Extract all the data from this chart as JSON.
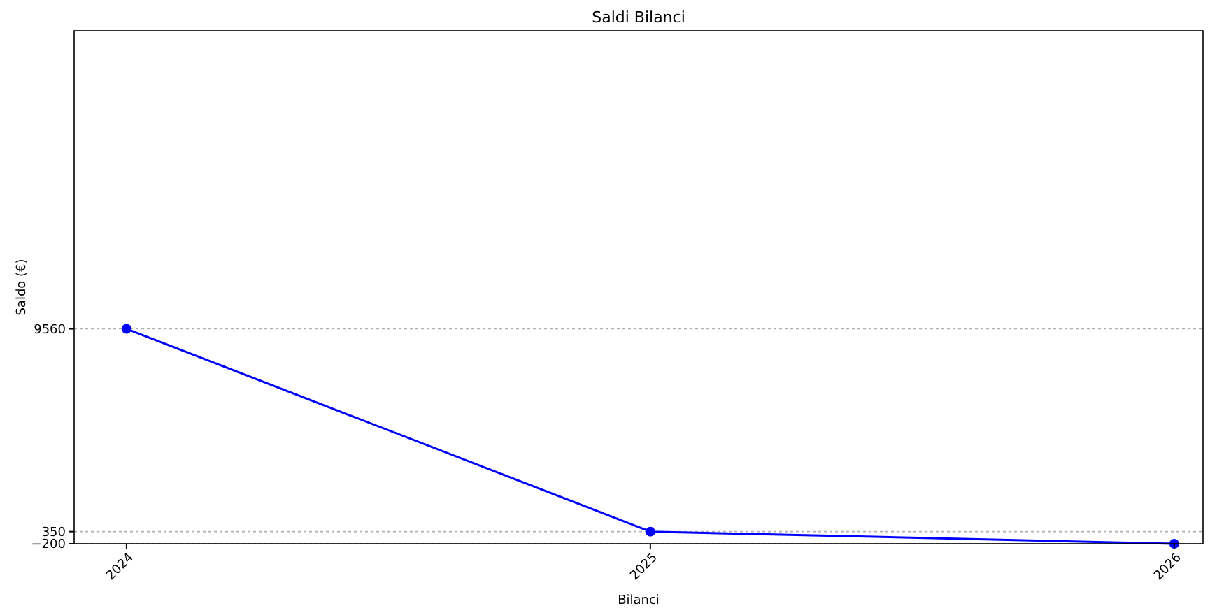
{
  "chart_data": {
    "type": "line",
    "title": "Saldi Bilanci",
    "xlabel": "Bilanci",
    "ylabel": "Saldo (€)",
    "categories": [
      "2024",
      "2025",
      "2026"
    ],
    "series": [
      {
        "color": "#0000ff",
        "values": [
          9560,
          350,
          -200
        ]
      }
    ],
    "ylim": [
      -200,
      23100
    ],
    "yticks": [
      -200,
      350,
      9560
    ],
    "grid": "y",
    "marker": "circle",
    "line_style": "solid"
  }
}
